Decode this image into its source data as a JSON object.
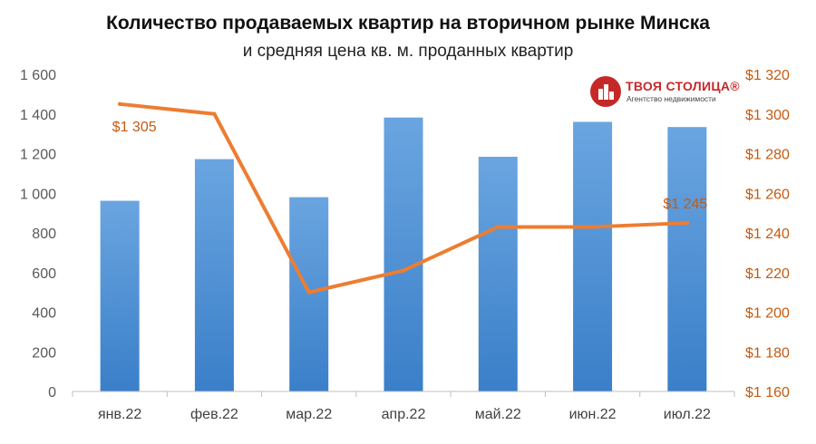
{
  "chart_data": {
    "type": "bar+line",
    "title": "Количество продаваемых квартир на вторичном рынке Минска",
    "subtitle": "и средняя цена кв. м. проданных квартир",
    "categories": [
      "янв.22",
      "фев.22",
      "мар.22",
      "апр.22",
      "май.22",
      "июн.22",
      "июл.22"
    ],
    "series": [
      {
        "kind": "bar",
        "axis": "left",
        "values": [
          962,
          1172,
          980,
          1382,
          1184,
          1360,
          1334
        ],
        "color": "#4a8fd6"
      },
      {
        "kind": "line",
        "axis": "right",
        "values": [
          1305,
          1300,
          1210,
          1221,
          1243,
          1243,
          1245
        ],
        "color": "#ed7d31"
      }
    ],
    "data_labels": [
      {
        "category": "янв.22",
        "text": "$1 305"
      },
      {
        "category": "июл.22",
        "text": "$1 245"
      }
    ],
    "y_left": {
      "ylim": [
        0,
        1600
      ],
      "ticks": [
        "0",
        "200",
        "400",
        "600",
        "800",
        "1 000",
        "1 200",
        "1 400",
        "1 600"
      ]
    },
    "y_right": {
      "ylim": [
        1160,
        1320
      ],
      "ticks": [
        "$1 160",
        "$1 180",
        "$1 200",
        "$1 220",
        "$1 240",
        "$1 260",
        "$1 280",
        "$1 300",
        "$1 320"
      ]
    },
    "grid": false
  },
  "logo": {
    "name": "ТВОЯ СТОЛИЦА®",
    "tagline": "Агентство недвижимости"
  },
  "colors": {
    "bar": "#4a8fd6",
    "line": "#ed7d31",
    "right_axis_text": "#c55a11",
    "logo": "#c62828"
  }
}
